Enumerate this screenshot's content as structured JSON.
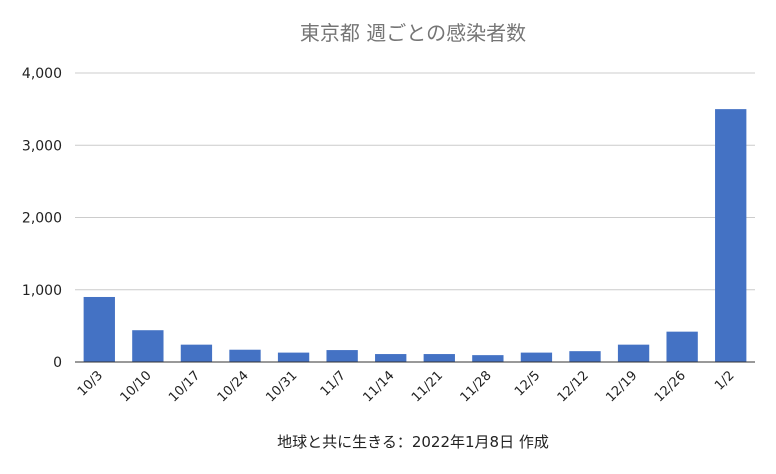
{
  "chart_data": {
    "type": "bar",
    "title": "東京都 週ごとの感染者数",
    "categories": [
      "10/3",
      "10/10",
      "10/17",
      "10/24",
      "10/31",
      "11/7",
      "11/14",
      "11/21",
      "11/28",
      "12/5",
      "12/12",
      "12/19",
      "12/26",
      "1/2"
    ],
    "values": [
      900,
      440,
      240,
      170,
      130,
      165,
      110,
      110,
      95,
      130,
      150,
      240,
      420,
      3500
    ],
    "ylim": [
      0,
      4000
    ],
    "yticks": [
      0,
      1000,
      2000,
      3000,
      4000
    ],
    "ytick_labels": [
      "0",
      "1,000",
      "2,000",
      "3,000",
      "4,000"
    ],
    "xlabel": "",
    "ylabel": "",
    "grid": true,
    "bar_color": "#4472C4"
  },
  "footer": "地球と共に生きる：2022年1月8日 作成"
}
